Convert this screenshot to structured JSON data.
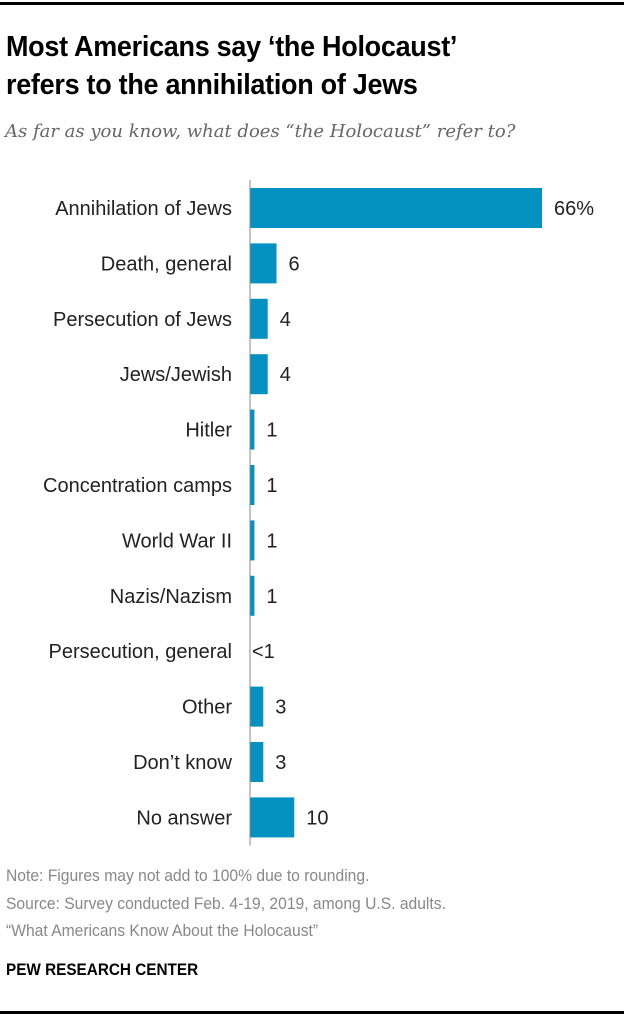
{
  "title_line1": "Most Americans say ‘the Holocaust’",
  "title_line2": "refers to the annihilation of Jews",
  "subtitle": "As far as you know, what does “the Holocaust” refer to?",
  "notes": {
    "note": "Note: Figures may not add to 100% due to rounding.",
    "source": "Source: Survey conducted Feb. 4-19, 2019, among U.S. adults.",
    "report": "“What Americans Know About the Holocaust”"
  },
  "brand": "PEW RESEARCH CENTER",
  "colors": {
    "bar": "#0391c1",
    "axis": "#888888"
  },
  "chart_data": {
    "type": "bar",
    "orientation": "horizontal",
    "categories": [
      "Annihilation of Jews",
      "Death, general",
      "Persecution of Jews",
      "Jews/Jewish",
      "Hitler",
      "Concentration camps",
      "World War II",
      "Nazis/Nazism",
      "Persecution, general",
      "Other",
      "Don’t know",
      "No answer"
    ],
    "values": [
      66,
      6,
      4,
      4,
      1,
      1,
      1,
      1,
      0,
      3,
      3,
      10
    ],
    "value_labels": [
      "66%",
      "6",
      "4",
      "4",
      "1",
      "1",
      "1",
      "1",
      "<1",
      "3",
      "3",
      "10"
    ],
    "xlim": [
      0,
      70
    ],
    "grid": false
  }
}
